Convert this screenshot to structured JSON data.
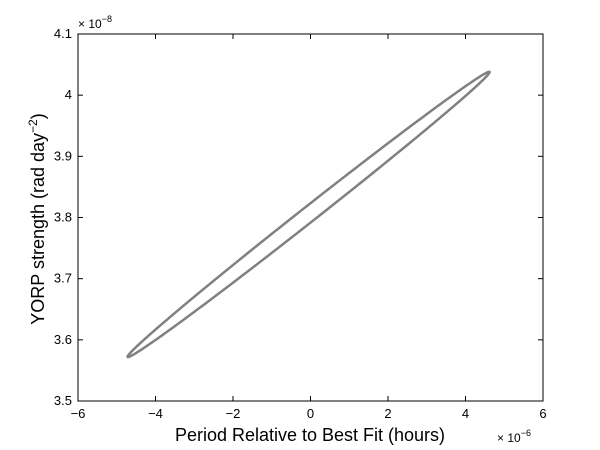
{
  "chart_data": {
    "type": "line",
    "xlabel": "Period Relative to Best Fit (hours)",
    "ylabel_main": "YORP strength (rad day",
    "ylabel_exp": "−2",
    "ylabel_close": ")",
    "x_multiplier": "× 10",
    "x_multiplier_exp": "−6",
    "y_multiplier": "× 10",
    "y_multiplier_exp": "−8",
    "xlim": [
      -6,
      6
    ],
    "ylim": [
      3.5,
      4.1
    ],
    "x_ticks": [
      -6,
      -4,
      -2,
      0,
      2,
      4,
      6
    ],
    "x_tick_labels": [
      "−6",
      "−4",
      "−2",
      "0",
      "2",
      "4",
      "6"
    ],
    "y_ticks": [
      3.5,
      3.6,
      3.7,
      3.8,
      3.9,
      4.0,
      4.1
    ],
    "y_tick_labels": [
      "3.5",
      "3.6",
      "3.7",
      "3.8",
      "3.9",
      "4",
      "4.1"
    ],
    "grid": false,
    "series": [
      {
        "color": "#808080",
        "shape": "ellipse",
        "center": [
          -0.05,
          3.805
        ],
        "tip_upper": [
          4.62,
          4.038
        ],
        "tip_lower": [
          -4.7,
          3.572
        ],
        "minor_half_width_y": 0.0125
      }
    ]
  }
}
